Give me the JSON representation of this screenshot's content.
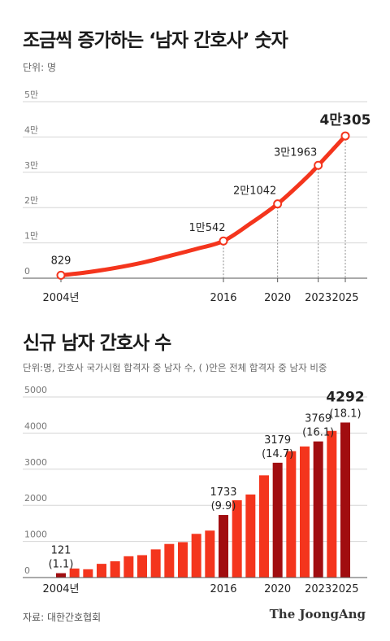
{
  "chart1": {
    "title": "조금씩 증가하는 ‘남자 간호사’ 숫자",
    "unit": "단위: 명"
  },
  "chart2": {
    "title": "신규 남자 간호사 수",
    "unit": "단위:명, 간호사 국가시험 합격자 중 남자 수, ( )안은 전체 합격자 중 남자 비중"
  },
  "source": "자료: 대한간호협회",
  "brand": "The JoongAng",
  "colors": {
    "line": "#f4351d",
    "bar": "#f4351d",
    "bar_highlight": "#a10d10",
    "text": "#222222"
  },
  "chart_data": [
    {
      "type": "line",
      "title": "조금씩 증가하는 ‘남자 간호사’ 숫자",
      "ylabel": "단위: 명",
      "ylim": [
        0,
        50000
      ],
      "yticks": [
        0,
        10000,
        20000,
        30000,
        40000,
        50000
      ],
      "ytick_labels": [
        "0",
        "1만",
        "2만",
        "3만",
        "4만",
        "5만"
      ],
      "x_range": [
        2004,
        2025
      ],
      "xtick_labels": [
        {
          "x": 2004,
          "label": "2004년"
        },
        {
          "x": 2016,
          "label": "2016"
        },
        {
          "x": 2020,
          "label": "2020"
        },
        {
          "x": 2023,
          "label": "2023"
        },
        {
          "x": 2025,
          "label": "2025"
        }
      ],
      "x": [
        2004,
        2006,
        2008,
        2010,
        2012,
        2014,
        2016,
        2018,
        2020,
        2022,
        2023,
        2025
      ],
      "y": [
        829,
        1700,
        2900,
        4400,
        6300,
        8300,
        10542,
        15500,
        21042,
        28000,
        31963,
        40305
      ],
      "annotations": [
        {
          "x": 2004,
          "y": 829,
          "label": "829"
        },
        {
          "x": 2016,
          "y": 10542,
          "label": "1만542"
        },
        {
          "x": 2020,
          "y": 21042,
          "label": "2만1042"
        },
        {
          "x": 2023,
          "y": 31963,
          "label": "3만1963"
        },
        {
          "x": 2025,
          "y": 40305,
          "label": "4만305"
        }
      ]
    },
    {
      "type": "bar",
      "title": "신규 남자 간호사 수",
      "ylim": [
        0,
        5000
      ],
      "yticks": [
        0,
        1000,
        2000,
        3000,
        4000,
        5000
      ],
      "ytick_labels": [
        "0",
        "1000",
        "2000",
        "3000",
        "4000",
        "5000"
      ],
      "categories": [
        2004,
        2005,
        2006,
        2007,
        2008,
        2009,
        2010,
        2011,
        2012,
        2013,
        2014,
        2015,
        2016,
        2017,
        2018,
        2019,
        2020,
        2021,
        2022,
        2023,
        2024,
        2025
      ],
      "xtick_labels": [
        {
          "x": 2004,
          "label": "2004년"
        },
        {
          "x": 2016,
          "label": "2016"
        },
        {
          "x": 2020,
          "label": "2020"
        },
        {
          "x": 2023,
          "label": "2023"
        },
        {
          "x": 2025,
          "label": "2025"
        }
      ],
      "values": [
        121,
        250,
        230,
        380,
        450,
        590,
        620,
        780,
        930,
        980,
        1210,
        1300,
        1733,
        2140,
        2300,
        2830,
        3179,
        3500,
        3630,
        3769,
        4060,
        4292
      ],
      "highlighted": [
        2004,
        2016,
        2020,
        2023,
        2025
      ],
      "annotations": [
        {
          "x": 2004,
          "value": "121",
          "share": "(1.1)"
        },
        {
          "x": 2016,
          "value": "1733",
          "share": "(9.9)"
        },
        {
          "x": 2020,
          "value": "3179",
          "share": "(14.7)"
        },
        {
          "x": 2023,
          "value": "3769",
          "share": "(16.1)"
        },
        {
          "x": 2025,
          "value": "4292",
          "share": "(18.1)"
        }
      ]
    }
  ]
}
